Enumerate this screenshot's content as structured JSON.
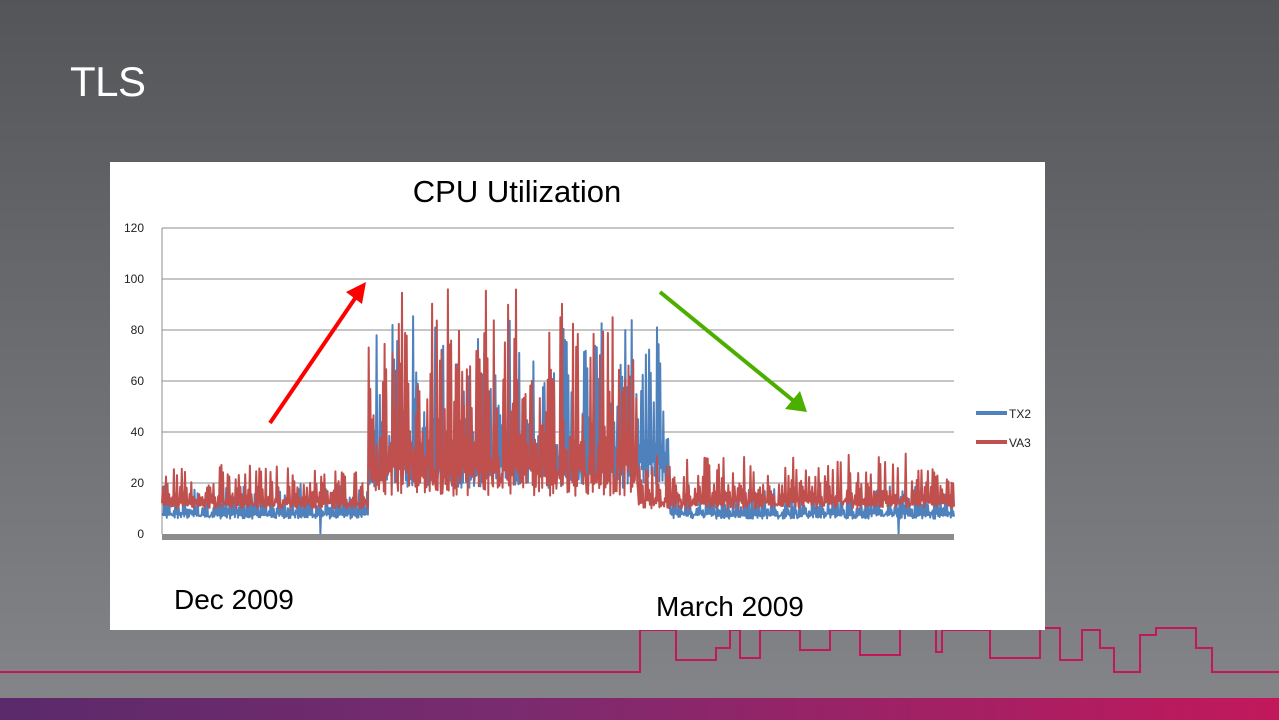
{
  "slide": {
    "title": "TLS"
  },
  "colors": {
    "tx2": "#4f81bd",
    "va3": "#c0504d",
    "up_arrow": "#ff0000",
    "down_arrow": "#4caf00",
    "accent_line": "#c2185b"
  },
  "annotations": {
    "left_label": "Dec 2009",
    "right_label": "March 2009"
  },
  "chart_data": {
    "type": "line",
    "title": "CPU Utilization",
    "xlabel": "",
    "ylabel": "",
    "ylim": [
      0,
      120
    ],
    "yticks": [
      0,
      20,
      40,
      60,
      80,
      100,
      120
    ],
    "grid": true,
    "legend_position": "right",
    "x": {
      "start": 0,
      "end": 1000,
      "note": "unlabeled time index"
    },
    "series": [
      {
        "name": "TX2",
        "color": "#4f81bd",
        "baseline_segments": [
          {
            "x0": 0,
            "x1": 260,
            "min": 6,
            "max": 20
          },
          {
            "x0": 260,
            "x1": 640,
            "min": 18,
            "max": 88
          },
          {
            "x0": 640,
            "x1": 1000,
            "min": 6,
            "max": 20
          }
        ],
        "notable_points": [
          {
            "x": 200,
            "y": 0
          },
          {
            "x": 585,
            "y": 80
          },
          {
            "x": 625,
            "y": 81
          },
          {
            "x": 930,
            "y": 0
          }
        ]
      },
      {
        "name": "VA3",
        "color": "#c0504d",
        "baseline_segments": [
          {
            "x0": 0,
            "x1": 260,
            "min": 10,
            "max": 28
          },
          {
            "x0": 260,
            "x1": 600,
            "min": 15,
            "max": 97
          },
          {
            "x0": 600,
            "x1": 1000,
            "min": 10,
            "max": 32
          }
        ]
      }
    ]
  }
}
